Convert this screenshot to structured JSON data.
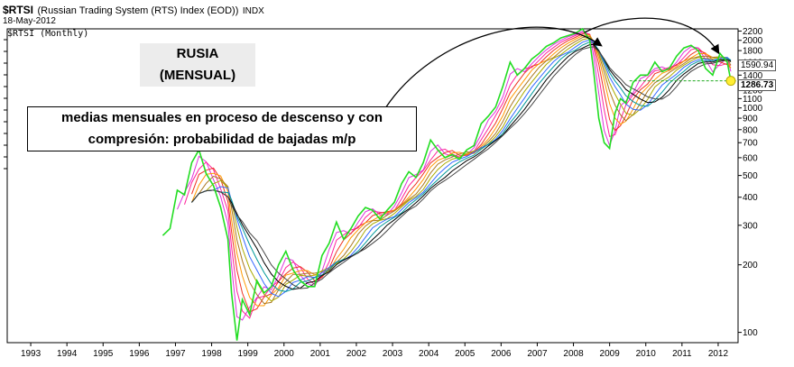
{
  "header": {
    "symbol": "$RTSI",
    "name": "(Russian Trading System (RTS) Index (EOD))",
    "exchange": "INDX",
    "date": "18-May-2012",
    "series_label": "$RTSI (Monthly)"
  },
  "title_box": {
    "line1": "RUSIA",
    "line2": "(MENSUAL)"
  },
  "annotation": {
    "line1": "medias mensuales en proceso de descenso y con",
    "line2": "compresión: probabilidad de bajadas m/p"
  },
  "price_tags": {
    "upper": "1590.94",
    "lower": "1286.73"
  },
  "chart_data": {
    "type": "line",
    "scale": "log",
    "x_ticks": [
      "1993",
      "1994",
      "1995",
      "1996",
      "1997",
      "1998",
      "1999",
      "2000",
      "2001",
      "2002",
      "2003",
      "2004",
      "2005",
      "2006",
      "2007",
      "2008",
      "2009",
      "2010",
      "2011",
      "2012"
    ],
    "y_ticks": [
      100,
      200,
      300,
      400,
      500,
      600,
      700,
      800,
      900,
      1000,
      1100,
      1200,
      1400,
      1600,
      1800,
      2000,
      2200
    ],
    "ylim": [
      90,
      2250
    ],
    "grid": false,
    "colors": {
      "price": "#22dd22",
      "averages": [
        "#dd33dd",
        "#ff2299",
        "#ee3322",
        "#ff9900",
        "#aa7722",
        "#aaaa00",
        "#3366ff",
        "#009999",
        "#000000",
        "#444444"
      ]
    },
    "series": [
      {
        "x": [
          1996.7,
          1996.9,
          1997.1,
          1997.3,
          1997.5,
          1997.7,
          1997.9,
          1998.1,
          1998.3,
          1998.5,
          1998.6,
          1998.75,
          1998.9,
          1999.1,
          1999.3,
          1999.5,
          1999.7,
          1999.9,
          2000.1,
          2000.3,
          2000.5,
          2000.7,
          2000.9,
          2001.1,
          2001.3,
          2001.5,
          2001.7,
          2001.9,
          2002.1,
          2002.3,
          2002.5,
          2002.7,
          2002.9,
          2003.1,
          2003.3,
          2003.5,
          2003.7,
          2003.9,
          2004.1,
          2004.3,
          2004.5,
          2004.7,
          2004.9,
          2005.1,
          2005.3,
          2005.5,
          2005.7,
          2005.9,
          2006.1,
          2006.3,
          2006.5,
          2006.7,
          2006.9,
          2007.1,
          2007.3,
          2007.5,
          2007.7,
          2007.9,
          2008.1,
          2008.3,
          2008.5,
          2008.6,
          2008.75,
          2008.9,
          2009.05,
          2009.2,
          2009.35,
          2009.5,
          2009.7,
          2009.9,
          2010.1,
          2010.3,
          2010.5,
          2010.7,
          2010.9,
          2011.1,
          2011.3,
          2011.5,
          2011.7,
          2011.9,
          2012.1,
          2012.3,
          2012.4
        ],
        "y": [
          270,
          290,
          430,
          410,
          570,
          650,
          510,
          450,
          360,
          260,
          150,
          92,
          140,
          120,
          170,
          150,
          160,
          200,
          230,
          190,
          170,
          160,
          160,
          220,
          250,
          310,
          260,
          290,
          330,
          360,
          350,
          320,
          350,
          380,
          460,
          520,
          490,
          570,
          720,
          650,
          600,
          620,
          590,
          650,
          680,
          850,
          920,
          1010,
          1250,
          1600,
          1400,
          1500,
          1650,
          1750,
          1880,
          1950,
          2050,
          2100,
          2150,
          2250,
          2000,
          1500,
          900,
          700,
          660,
          950,
          1100,
          1050,
          1300,
          1400,
          1400,
          1600,
          1450,
          1500,
          1700,
          1850,
          1900,
          1800,
          1500,
          1400,
          1750,
          1600,
          1320
        ]
      }
    ]
  }
}
